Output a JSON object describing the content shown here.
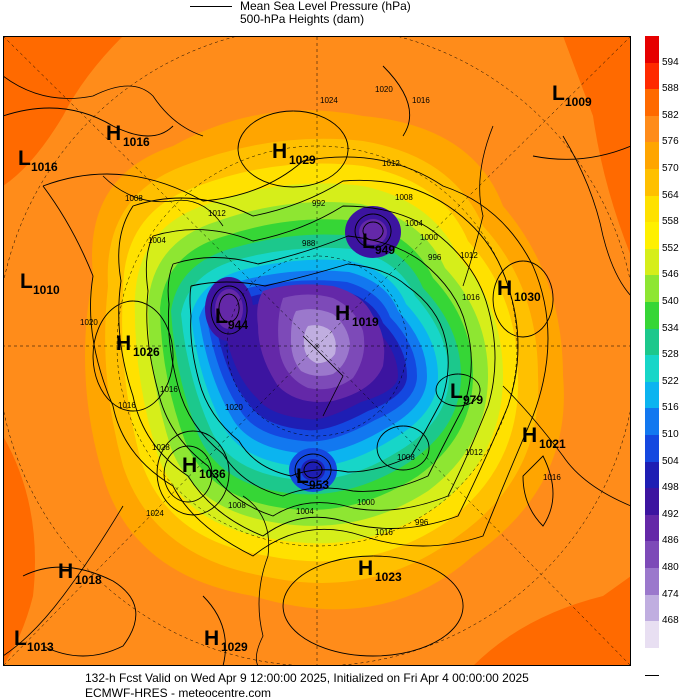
{
  "legend": {
    "line1": "Mean Sea Level Pressure (hPa)",
    "line2": "500-hPa Heights (dam)"
  },
  "footer": {
    "line1": "132-h Fcst Valid on Wed Apr  9 12:00:00 2025, Initialized on Fri Apr  4 00:00:00 2025",
    "line2": "ECMWF-HRES  - meteocentre.com"
  },
  "colorbar": {
    "labels": [
      "594",
      "588",
      "582",
      "576",
      "570",
      "564",
      "558",
      "552",
      "546",
      "540",
      "534",
      "528",
      "522",
      "516",
      "510",
      "504",
      "498",
      "492",
      "486",
      "480",
      "474",
      "468"
    ],
    "colors": [
      "#e60000",
      "#ff2a00",
      "#ff6a00",
      "#ff8c1a",
      "#ffa500",
      "#ffc000",
      "#ffe100",
      "#fff000",
      "#d6ee1a",
      "#8ee632",
      "#36d636",
      "#1cc88c",
      "#17d6c8",
      "#0bb4f0",
      "#1278f0",
      "#1448e0",
      "#1e1eb4",
      "#3c14a0",
      "#6428a8",
      "#7d4ab8",
      "#9b78cc",
      "#c0aee0",
      "#e8dff2",
      "#ffffff"
    ]
  },
  "systems": [
    {
      "type": "L",
      "value": "1009"
    },
    {
      "type": "H",
      "value": "1016"
    },
    {
      "type": "L",
      "value": "1016"
    },
    {
      "type": "H",
      "value": "1029"
    },
    {
      "type": "L",
      "value": "949"
    },
    {
      "type": "L",
      "value": "1010"
    },
    {
      "type": "L",
      "value": "944"
    },
    {
      "type": "H",
      "value": "1019"
    },
    {
      "type": "H",
      "value": "1030"
    },
    {
      "type": "H",
      "value": "1026"
    },
    {
      "type": "L",
      "value": "979"
    },
    {
      "type": "H",
      "value": "1021"
    },
    {
      "type": "H",
      "value": "1036"
    },
    {
      "type": "L",
      "value": "953"
    },
    {
      "type": "H",
      "value": "1018"
    },
    {
      "type": "H",
      "value": "1023"
    },
    {
      "type": "L",
      "value": "1013"
    },
    {
      "type": "H",
      "value": "1029"
    }
  ],
  "isobar_labels": [
    "1024",
    "1020",
    "1016",
    "1012",
    "1008",
    "1004",
    "1000",
    "996",
    "992",
    "988",
    "1008",
    "1004",
    "1012",
    "1016",
    "1020",
    "1028",
    "1024",
    "1016",
    "1012",
    "1016",
    "1008",
    "1004",
    "1000",
    "996",
    "1012",
    "1016",
    "1020",
    "1016",
    "1008"
  ]
}
